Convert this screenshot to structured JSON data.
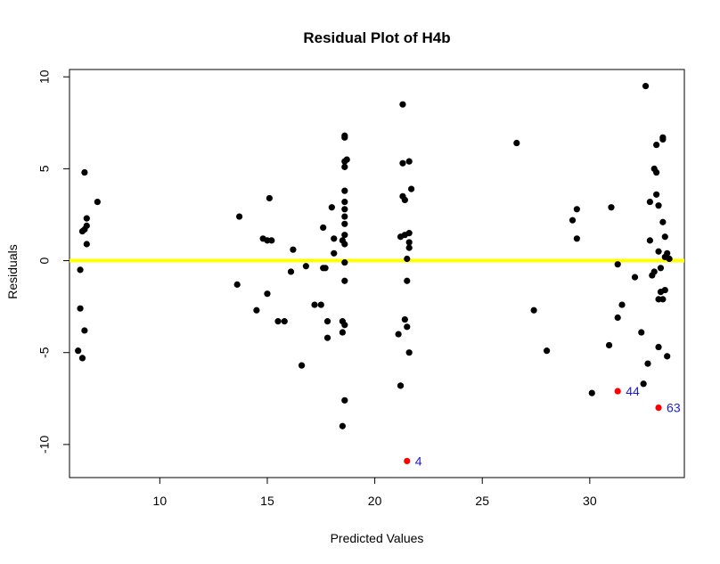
{
  "chart_data": {
    "type": "scatter",
    "title": "Residual Plot of H4b",
    "xlabel": "Predicted Values",
    "ylabel": "Residuals",
    "xlim": [
      5.8,
      34.4
    ],
    "ylim": [
      -11.8,
      10.4
    ],
    "xticks": [
      10,
      15,
      20,
      25,
      30
    ],
    "xtick_labels": [
      "10",
      "15",
      "20",
      "25",
      "30"
    ],
    "yticks": [
      -10,
      -5,
      0,
      5,
      10
    ],
    "ytick_labels": [
      "-10",
      "-5",
      "0",
      "5",
      "10"
    ],
    "grid": false,
    "reference_line": {
      "y": 0,
      "color": "#ffff00"
    },
    "point_color": "#000000",
    "highlight_color": "#ff0000",
    "label_color": "#1a1adb",
    "points": [
      [
        6.4,
        1.6
      ],
      [
        6.5,
        4.8
      ],
      [
        6.6,
        2.3
      ],
      [
        6.6,
        1.9
      ],
      [
        6.5,
        1.7
      ],
      [
        6.6,
        0.9
      ],
      [
        7.1,
        3.2
      ],
      [
        6.3,
        -0.5
      ],
      [
        6.3,
        -2.6
      ],
      [
        6.5,
        -3.8
      ],
      [
        6.2,
        -4.9
      ],
      [
        6.4,
        -5.3
      ],
      [
        13.7,
        2.4
      ],
      [
        13.6,
        -1.3
      ],
      [
        14.5,
        -2.7
      ],
      [
        14.8,
        1.2
      ],
      [
        15.0,
        1.1
      ],
      [
        15.2,
        1.1
      ],
      [
        15.1,
        3.4
      ],
      [
        15.0,
        -1.8
      ],
      [
        15.5,
        -3.3
      ],
      [
        15.8,
        -3.3
      ],
      [
        16.1,
        -0.6
      ],
      [
        16.2,
        0.6
      ],
      [
        16.6,
        -5.7
      ],
      [
        16.8,
        -0.3
      ],
      [
        17.2,
        -2.4
      ],
      [
        17.5,
        -2.4
      ],
      [
        17.6,
        1.8
      ],
      [
        17.6,
        -0.4
      ],
      [
        17.7,
        -0.4
      ],
      [
        17.8,
        -3.3
      ],
      [
        17.8,
        -4.2
      ],
      [
        18.0,
        2.9
      ],
      [
        18.1,
        1.2
      ],
      [
        18.1,
        0.4
      ],
      [
        18.5,
        1.1
      ],
      [
        18.6,
        6.8
      ],
      [
        18.6,
        5.4
      ],
      [
        18.6,
        5.1
      ],
      [
        18.6,
        3.8
      ],
      [
        18.6,
        3.2
      ],
      [
        18.6,
        2.8
      ],
      [
        18.6,
        2.4
      ],
      [
        18.6,
        2.0
      ],
      [
        18.6,
        1.4
      ],
      [
        18.6,
        0.9
      ],
      [
        18.6,
        -0.1
      ],
      [
        18.6,
        -1.1
      ],
      [
        18.5,
        -3.3
      ],
      [
        18.6,
        -3.5
      ],
      [
        18.5,
        -3.9
      ],
      [
        18.6,
        -7.6
      ],
      [
        18.5,
        -9.0
      ],
      [
        18.6,
        6.7
      ],
      [
        18.7,
        5.5
      ],
      [
        21.3,
        8.5
      ],
      [
        21.3,
        5.3
      ],
      [
        21.3,
        3.5
      ],
      [
        21.4,
        3.3
      ],
      [
        21.2,
        1.3
      ],
      [
        21.4,
        1.4
      ],
      [
        21.5,
        0.1
      ],
      [
        21.5,
        -1.1
      ],
      [
        21.4,
        -3.2
      ],
      [
        21.5,
        -3.6
      ],
      [
        21.6,
        -5.0
      ],
      [
        21.1,
        -4.0
      ],
      [
        21.2,
        -6.8
      ],
      [
        21.6,
        5.4
      ],
      [
        21.7,
        3.9
      ],
      [
        21.6,
        1.0
      ],
      [
        21.6,
        1.5
      ],
      [
        21.6,
        0.7
      ],
      [
        26.6,
        6.4
      ],
      [
        27.4,
        -2.7
      ],
      [
        28.0,
        -4.9
      ],
      [
        29.2,
        2.2
      ],
      [
        29.4,
        2.8
      ],
      [
        29.4,
        1.2
      ],
      [
        30.1,
        -7.2
      ],
      [
        30.9,
        -4.6
      ],
      [
        31.0,
        2.9
      ],
      [
        31.3,
        -0.2
      ],
      [
        31.3,
        -3.1
      ],
      [
        31.5,
        -2.4
      ],
      [
        32.1,
        -0.9
      ],
      [
        32.4,
        -3.9
      ],
      [
        32.5,
        -6.7
      ],
      [
        32.6,
        9.5
      ],
      [
        32.7,
        -5.6
      ],
      [
        32.8,
        1.1
      ],
      [
        32.8,
        3.2
      ],
      [
        32.9,
        -0.8
      ],
      [
        33.0,
        5.0
      ],
      [
        33.0,
        -0.6
      ],
      [
        33.1,
        4.8
      ],
      [
        33.1,
        6.3
      ],
      [
        33.1,
        3.6
      ],
      [
        33.2,
        3.0
      ],
      [
        33.2,
        0.5
      ],
      [
        33.2,
        -4.7
      ],
      [
        33.2,
        -2.1
      ],
      [
        33.3,
        -0.4
      ],
      [
        33.3,
        -1.7
      ],
      [
        33.4,
        6.6
      ],
      [
        33.4,
        6.7
      ],
      [
        33.4,
        2.1
      ],
      [
        33.4,
        -2.1
      ],
      [
        33.5,
        0.2
      ],
      [
        33.5,
        -1.6
      ],
      [
        33.5,
        1.3
      ],
      [
        33.6,
        0.4
      ],
      [
        33.6,
        -5.2
      ],
      [
        33.7,
        0.1
      ]
    ],
    "labeled_points": [
      {
        "x": 21.5,
        "y": -10.9,
        "label": "4"
      },
      {
        "x": 31.3,
        "y": -7.1,
        "label": "44"
      },
      {
        "x": 33.2,
        "y": -8.0,
        "label": "63"
      }
    ]
  }
}
